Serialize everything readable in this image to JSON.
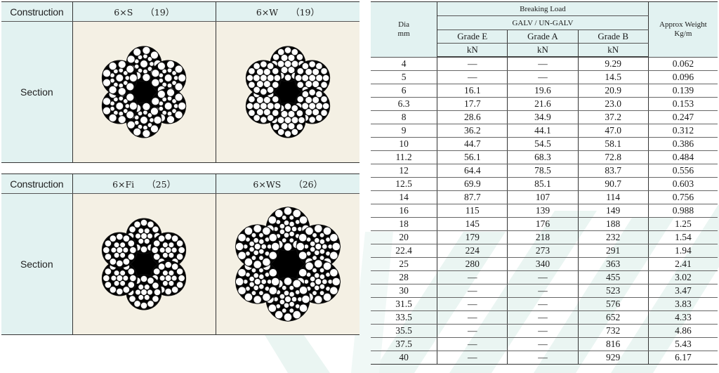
{
  "constructions": {
    "header_label": "Construction",
    "section_label": "Section",
    "tables": [
      {
        "items": [
          {
            "name": "6×S",
            "count": "（19）",
            "icon": "rope-cross-section-6xS-19"
          },
          {
            "name": "6×W",
            "count": "（19）",
            "icon": "rope-cross-section-6xW-19"
          }
        ]
      },
      {
        "items": [
          {
            "name": "6×Fi",
            "count": "（25）",
            "icon": "rope-cross-section-6xFi-25"
          },
          {
            "name": "6×WS",
            "count": "（26）",
            "icon": "rope-cross-section-6xWS-26"
          }
        ]
      }
    ]
  },
  "spec_table": {
    "headers": {
      "dia": "Dia",
      "dia_unit": "mm",
      "breaking_load": "Breaking Load",
      "galv": "GALV / UN-GALV",
      "grades": [
        "Grade E",
        "Grade A",
        "Grade B"
      ],
      "grade_unit": "kN",
      "weight": "Approx Weight",
      "weight_unit": "Kg/m"
    },
    "rows": [
      {
        "dia": "4",
        "grade_e": "—",
        "grade_a": "—",
        "grade_b": "9.29",
        "weight": "0.062"
      },
      {
        "dia": "5",
        "grade_e": "—",
        "grade_a": "—",
        "grade_b": "14.5",
        "weight": "0.096"
      },
      {
        "dia": "6",
        "grade_e": "16.1",
        "grade_a": "19.6",
        "grade_b": "20.9",
        "weight": "0.139"
      },
      {
        "dia": "6.3",
        "grade_e": "17.7",
        "grade_a": "21.6",
        "grade_b": "23.0",
        "weight": "0.153"
      },
      {
        "dia": "8",
        "grade_e": "28.6",
        "grade_a": "34.9",
        "grade_b": "37.2",
        "weight": "0.247"
      },
      {
        "dia": "9",
        "grade_e": "36.2",
        "grade_a": "44.1",
        "grade_b": "47.0",
        "weight": "0.312"
      },
      {
        "dia": "10",
        "grade_e": "44.7",
        "grade_a": "54.5",
        "grade_b": "58.1",
        "weight": "0.386"
      },
      {
        "dia": "11.2",
        "grade_e": "56.1",
        "grade_a": "68.3",
        "grade_b": "72.8",
        "weight": "0.484"
      },
      {
        "dia": "12",
        "grade_e": "64.4",
        "grade_a": "78.5",
        "grade_b": "83.7",
        "weight": "0.556"
      },
      {
        "dia": "12.5",
        "grade_e": "69.9",
        "grade_a": "85.1",
        "grade_b": "90.7",
        "weight": "0.603"
      },
      {
        "dia": "14",
        "grade_e": "87.7",
        "grade_a": "107",
        "grade_b": "114",
        "weight": "0.756"
      },
      {
        "dia": "16",
        "grade_e": "115",
        "grade_a": "139",
        "grade_b": "149",
        "weight": "0.988"
      },
      {
        "dia": "18",
        "grade_e": "145",
        "grade_a": "176",
        "grade_b": "188",
        "weight": "1.25"
      },
      {
        "dia": "20",
        "grade_e": "179",
        "grade_a": "218",
        "grade_b": "232",
        "weight": "1.54"
      },
      {
        "dia": "22.4",
        "grade_e": "224",
        "grade_a": "273",
        "grade_b": "291",
        "weight": "1.94"
      },
      {
        "dia": "25",
        "grade_e": "280",
        "grade_a": "340",
        "grade_b": "363",
        "weight": "2.41"
      },
      {
        "dia": "28",
        "grade_e": "—",
        "grade_a": "—",
        "grade_b": "455",
        "weight": "3.02"
      },
      {
        "dia": "30",
        "grade_e": "—",
        "grade_a": "—",
        "grade_b": "523",
        "weight": "3.47"
      },
      {
        "dia": "31.5",
        "grade_e": "—",
        "grade_a": "—",
        "grade_b": "576",
        "weight": "3.83"
      },
      {
        "dia": "33.5",
        "grade_e": "—",
        "grade_a": "—",
        "grade_b": "652",
        "weight": "4.33"
      },
      {
        "dia": "35.5",
        "grade_e": "—",
        "grade_a": "—",
        "grade_b": "732",
        "weight": "4.86"
      },
      {
        "dia": "37.5",
        "grade_e": "—",
        "grade_a": "—",
        "grade_b": "816",
        "weight": "5.43"
      },
      {
        "dia": "40",
        "grade_e": "—",
        "grade_a": "—",
        "grade_b": "929",
        "weight": "6.17"
      }
    ]
  },
  "colors": {
    "header_bg": "#e2f2f1",
    "section_bg": "#f4f0e4",
    "watermark": "#e6f3f0",
    "rule": "#333333"
  }
}
